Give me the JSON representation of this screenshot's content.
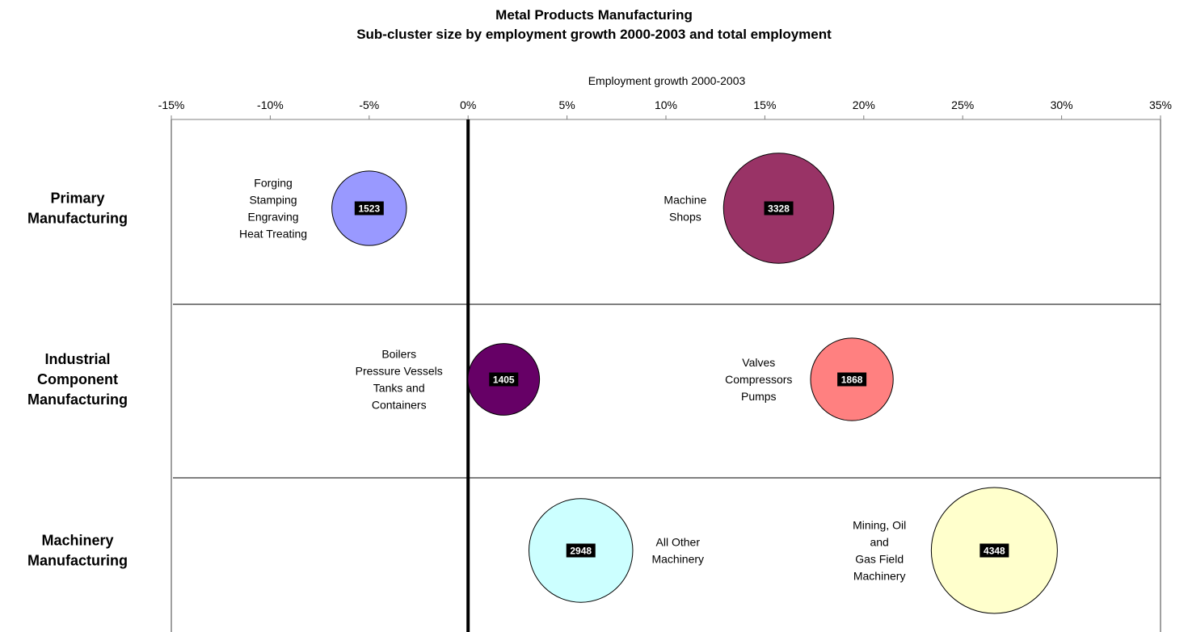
{
  "chart_data": {
    "type": "bubble",
    "title": "Metal Products Manufacturing",
    "subtitle": "Sub-cluster size by employment growth 2000-2003 and total employment",
    "xlabel": "Employment growth 2000-2003",
    "xlim": [
      -0.15,
      0.35
    ],
    "x_ticks": [
      -0.15,
      -0.1,
      -0.05,
      0,
      0.05,
      0.1,
      0.15,
      0.2,
      0.25,
      0.3,
      0.35
    ],
    "x_tick_labels": [
      "-15%",
      "-10%",
      "-5%",
      "0%",
      "5%",
      "10%",
      "15%",
      "20%",
      "25%",
      "30%",
      "35%"
    ],
    "rows": [
      {
        "label": [
          "Primary",
          "Manufacturing"
        ]
      },
      {
        "label": [
          "Industrial",
          "Component",
          "Manufacturing"
        ]
      },
      {
        "label": [
          "Machinery",
          "Manufacturing"
        ]
      }
    ],
    "bubbles": [
      {
        "row": 0,
        "x": -0.05,
        "size": 1523,
        "value_label": "1523",
        "color": "#9999ff",
        "label_lines": [
          "Forging",
          "Stamping",
          "Engraving",
          "Heat Treating"
        ],
        "label_side": "left"
      },
      {
        "row": 0,
        "x": 0.157,
        "size": 3328,
        "value_label": "3328",
        "color": "#993366",
        "label_lines": [
          "Machine",
          "Shops"
        ],
        "label_side": "left"
      },
      {
        "row": 1,
        "x": 0.018,
        "size": 1405,
        "value_label": "1405",
        "color": "#660066",
        "label_lines": [
          "Boilers",
          "Pressure Vessels",
          "Tanks and",
          "Containers"
        ],
        "label_side": "left"
      },
      {
        "row": 1,
        "x": 0.194,
        "size": 1868,
        "value_label": "1868",
        "color": "#ff8080",
        "label_lines": [
          "Valves",
          "Compressors",
          "Pumps"
        ],
        "label_side": "left"
      },
      {
        "row": 2,
        "x": 0.057,
        "size": 2948,
        "value_label": "2948",
        "color": "#ccffff",
        "label_lines": [
          "All Other",
          "Machinery"
        ],
        "label_side": "right"
      },
      {
        "row": 2,
        "x": 0.266,
        "size": 4348,
        "value_label": "4348",
        "color": "#ffffcc",
        "label_lines": [
          "Mining, Oil",
          "and",
          "Gas Field",
          "Machinery"
        ],
        "label_side": "left"
      }
    ],
    "grid": false
  }
}
